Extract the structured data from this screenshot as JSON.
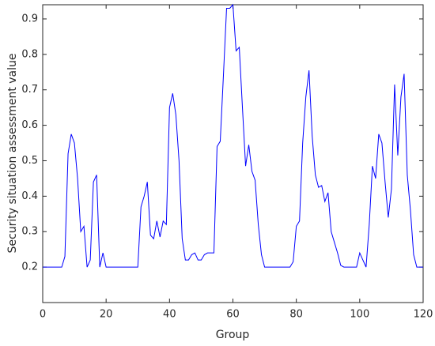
{
  "chart_data": {
    "type": "line",
    "xlabel": "Group",
    "ylabel": "Security situation assessment value",
    "x": [
      0,
      1,
      2,
      3,
      4,
      5,
      6,
      7,
      8,
      9,
      10,
      11,
      12,
      13,
      14,
      15,
      16,
      17,
      18,
      19,
      20,
      21,
      22,
      23,
      24,
      25,
      26,
      27,
      28,
      29,
      30,
      31,
      32,
      33,
      34,
      35,
      36,
      37,
      38,
      39,
      40,
      41,
      42,
      43,
      44,
      45,
      46,
      47,
      48,
      49,
      50,
      51,
      52,
      53,
      54,
      55,
      56,
      57,
      58,
      59,
      60,
      61,
      62,
      63,
      64,
      65,
      66,
      67,
      68,
      69,
      70,
      71,
      72,
      73,
      74,
      75,
      76,
      77,
      78,
      79,
      80,
      81,
      82,
      83,
      84,
      85,
      86,
      87,
      88,
      89,
      90,
      91,
      92,
      93,
      94,
      95,
      96,
      97,
      98,
      99,
      100,
      101,
      102,
      103,
      104,
      105,
      106,
      107,
      108,
      109,
      110,
      111,
      112,
      113,
      114,
      115,
      116,
      117,
      118,
      119,
      120
    ],
    "values": [
      0.2,
      0.2,
      0.2,
      0.2,
      0.2,
      0.2,
      0.2,
      0.23,
      0.52,
      0.575,
      0.55,
      0.45,
      0.3,
      0.315,
      0.2,
      0.22,
      0.44,
      0.46,
      0.2,
      0.24,
      0.2,
      0.2,
      0.2,
      0.2,
      0.2,
      0.2,
      0.2,
      0.2,
      0.2,
      0.2,
      0.2,
      0.37,
      0.4,
      0.44,
      0.29,
      0.28,
      0.33,
      0.285,
      0.33,
      0.32,
      0.65,
      0.69,
      0.63,
      0.5,
      0.28,
      0.22,
      0.22,
      0.235,
      0.24,
      0.22,
      0.22,
      0.235,
      0.24,
      0.24,
      0.24,
      0.54,
      0.555,
      0.74,
      0.93,
      0.93,
      0.94,
      0.81,
      0.82,
      0.65,
      0.485,
      0.545,
      0.47,
      0.445,
      0.32,
      0.235,
      0.2,
      0.2,
      0.2,
      0.2,
      0.2,
      0.2,
      0.2,
      0.2,
      0.2,
      0.215,
      0.315,
      0.33,
      0.55,
      0.68,
      0.755,
      0.57,
      0.46,
      0.425,
      0.43,
      0.385,
      0.41,
      0.3,
      0.27,
      0.24,
      0.205,
      0.2,
      0.2,
      0.2,
      0.2,
      0.2,
      0.24,
      0.22,
      0.2,
      0.32,
      0.485,
      0.45,
      0.575,
      0.55,
      0.44,
      0.34,
      0.42,
      0.715,
      0.515,
      0.68,
      0.745,
      0.46,
      0.36,
      0.235,
      0.2,
      0.2,
      0.2
    ],
    "color": "#0000ff",
    "xlim": [
      0,
      120
    ],
    "xticks": [
      0,
      20,
      40,
      60,
      80,
      100,
      120
    ],
    "ylim": [
      0.1,
      0.94
    ],
    "yticks": [
      0.2,
      0.3,
      0.4,
      0.5,
      0.6,
      0.7,
      0.8,
      0.9
    ]
  }
}
